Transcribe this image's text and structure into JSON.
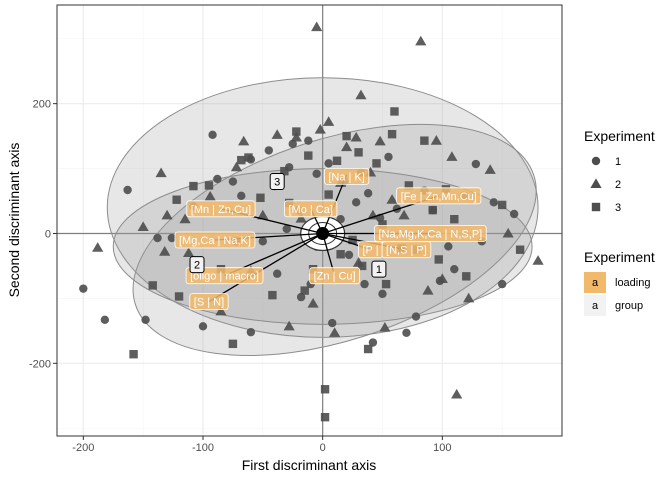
{
  "chart_data": {
    "type": "scatter",
    "title": "",
    "xlabel": "First discriminant axis",
    "ylabel": "Second discriminant axis",
    "xlim": [
      -222,
      200
    ],
    "ylim": [
      -312,
      352
    ],
    "x_ticks": [
      -200,
      -100,
      0,
      100
    ],
    "y_ticks": [
      -200,
      0,
      200
    ],
    "grid": true,
    "colors": {
      "points": "#4d4d4d",
      "ellipse_fill": "#9a9a9a",
      "ellipse_stroke": "#8c8c8c",
      "loading": "#f2b96a",
      "grid_major": "#ebebeb",
      "zero_line": "#7f7f7f"
    },
    "legend": {
      "placement": "right",
      "shape_title": "Experiment",
      "shapes": [
        {
          "label": "1",
          "shape": "circle"
        },
        {
          "label": "2",
          "shape": "triangle"
        },
        {
          "label": "3",
          "shape": "square"
        }
      ],
      "fill_title": "Experiment",
      "fills": [
        {
          "key": "a",
          "label": "loading",
          "color": "#f2b96a"
        },
        {
          "key": "a",
          "label": "group",
          "color": "#f2f2f2"
        }
      ]
    },
    "ellipses": [
      {
        "name": "1",
        "cx": 0,
        "cy": 40,
        "rx": 180,
        "ry": 200,
        "angle": 0
      },
      {
        "name": "2",
        "cx": 10,
        "cy": -10,
        "rx": 175,
        "ry": 155,
        "angle": -18
      },
      {
        "name": "3",
        "cx": 0,
        "cy": -20,
        "rx": 175,
        "ry": 120,
        "angle": 0
      }
    ],
    "loadings": [
      {
        "label": "[Fe | Zn,Mn,Cu]",
        "x": 97,
        "y": 58,
        "lx": 97,
        "ly": 58
      },
      {
        "label": "[Na | K]",
        "x": 20,
        "y": 90,
        "lx": 20,
        "ly": 88
      },
      {
        "label": "[Mn | Zn,Cu]",
        "x": -85,
        "y": 38,
        "lx": -85,
        "ly": 38
      },
      {
        "label": "[Mo | Ca]",
        "x": -10,
        "y": 38,
        "lx": -10,
        "ly": 38
      },
      {
        "label": "[Mg,Ca | Na,K]",
        "x": -90,
        "y": -10,
        "lx": -90,
        "ly": -10
      },
      {
        "label": "[Na,Mg,K,Ca | N,S,P]",
        "x": 90,
        "y": 0,
        "lx": 90,
        "ly": 0
      },
      {
        "label": "[P | ",
        "x": 40,
        "y": -25,
        "lx": 40,
        "ly": -25
      },
      {
        "label": "[N,S | P]",
        "x": 70,
        "y": -25,
        "lx": 70,
        "ly": -25
      },
      {
        "label": "[oligo | macro]",
        "x": -82,
        "y": -65,
        "lx": -82,
        "ly": -65
      },
      {
        "label": "[Zn | Cu]",
        "x": 10,
        "y": -65,
        "lx": 10,
        "ly": -65
      },
      {
        "label": "[S | N]",
        "x": -95,
        "y": -105,
        "lx": -95,
        "ly": -105
      }
    ],
    "groups": [
      {
        "label": "3",
        "x": -38,
        "y": 80
      },
      {
        "label": "2",
        "x": -105,
        "y": -48
      },
      {
        "label": "1",
        "x": 47,
        "y": -55
      }
    ],
    "series": [
      {
        "name": "1",
        "shape": "circle",
        "points": [
          [
            -200,
            -85
          ],
          [
            -182,
            -133
          ],
          [
            -163,
            67
          ],
          [
            -148,
            -133
          ],
          [
            -138,
            -7
          ],
          [
            -126,
            -7
          ],
          [
            -108,
            42
          ],
          [
            -100,
            -143
          ],
          [
            -92,
            152
          ],
          [
            -88,
            84
          ],
          [
            -75,
            80
          ],
          [
            -72,
            -12
          ],
          [
            -68,
            58
          ],
          [
            -60,
            114
          ],
          [
            -60,
            -152
          ],
          [
            -50,
            -12
          ],
          [
            -45,
            128
          ],
          [
            -40,
            73
          ],
          [
            -38,
            -62
          ],
          [
            -30,
            7
          ],
          [
            -28,
            102
          ],
          [
            -25,
            138
          ],
          [
            -20,
            36
          ],
          [
            -18,
            -98
          ],
          [
            -12,
            143
          ],
          [
            -10,
            -78
          ],
          [
            -5,
            92
          ],
          [
            5,
            108
          ],
          [
            8,
            -138
          ],
          [
            15,
            22
          ],
          [
            18,
            80
          ],
          [
            22,
            -33
          ],
          [
            28,
            48
          ],
          [
            32,
            94
          ],
          [
            35,
            -78
          ],
          [
            38,
            62
          ],
          [
            42,
            -168
          ],
          [
            48,
            24
          ],
          [
            50,
            -93
          ],
          [
            55,
            118
          ],
          [
            62,
            38
          ],
          [
            70,
            -153
          ],
          [
            78,
            -128
          ],
          [
            85,
            66
          ],
          [
            92,
            36
          ],
          [
            98,
            -73
          ],
          [
            105,
            -20
          ],
          [
            110,
            -55
          ],
          [
            118,
            58
          ],
          [
            128,
            107
          ],
          [
            133,
            -12
          ],
          [
            143,
            48
          ],
          [
            150,
            -78
          ],
          [
            160,
            30
          ]
        ]
      },
      {
        "name": "2",
        "shape": "triangle",
        "points": [
          [
            -188,
            -22
          ],
          [
            -150,
            10
          ],
          [
            -135,
            93
          ],
          [
            -132,
            -28
          ],
          [
            -130,
            28
          ],
          [
            -115,
            22
          ],
          [
            -112,
            -30
          ],
          [
            -94,
            57
          ],
          [
            -85,
            -120
          ],
          [
            -72,
            102
          ],
          [
            -66,
            142
          ],
          [
            -60,
            -58
          ],
          [
            -50,
            28
          ],
          [
            -38,
            152
          ],
          [
            -28,
            -143
          ],
          [
            -22,
            148
          ],
          [
            -18,
            23
          ],
          [
            -8,
            -108
          ],
          [
            -5,
            318
          ],
          [
            -2,
            160
          ],
          [
            5,
            172
          ],
          [
            10,
            -153
          ],
          [
            15,
            78
          ],
          [
            20,
            133
          ],
          [
            28,
            148
          ],
          [
            30,
            -45
          ],
          [
            32,
            213
          ],
          [
            40,
            94
          ],
          [
            42,
            28
          ],
          [
            48,
            142
          ],
          [
            52,
            -145
          ],
          [
            58,
            52
          ],
          [
            68,
            28
          ],
          [
            82,
            296
          ],
          [
            88,
            -88
          ],
          [
            95,
            143
          ],
          [
            100,
            -70
          ],
          [
            108,
            118
          ],
          [
            112,
            -248
          ],
          [
            122,
            -100
          ],
          [
            140,
            98
          ],
          [
            155,
            0
          ],
          [
            180,
            -42
          ]
        ]
      },
      {
        "name": "3",
        "shape": "square",
        "points": [
          [
            -158,
            -186
          ],
          [
            -142,
            -80
          ],
          [
            -122,
            52
          ],
          [
            -120,
            -97
          ],
          [
            -108,
            73
          ],
          [
            -95,
            74
          ],
          [
            -85,
            -55
          ],
          [
            -75,
            -170
          ],
          [
            -68,
            113
          ],
          [
            -62,
            117
          ],
          [
            -52,
            55
          ],
          [
            -42,
            -95
          ],
          [
            -32,
            96
          ],
          [
            -28,
            47
          ],
          [
            -22,
            157
          ],
          [
            -15,
            -88
          ],
          [
            -12,
            120
          ],
          [
            -8,
            -55
          ],
          [
            -3,
            -20
          ],
          [
            2,
            -240
          ],
          [
            2,
            -283
          ],
          [
            5,
            60
          ],
          [
            12,
            112
          ],
          [
            15,
            -32
          ],
          [
            20,
            150
          ],
          [
            25,
            -10
          ],
          [
            30,
            125
          ],
          [
            33,
            -50
          ],
          [
            38,
            -178
          ],
          [
            45,
            108
          ],
          [
            50,
            14
          ],
          [
            53,
            -78
          ],
          [
            58,
            153
          ],
          [
            60,
            188
          ],
          [
            66,
            -23
          ],
          [
            72,
            74
          ],
          [
            78,
            -25
          ],
          [
            85,
            143
          ],
          [
            92,
            36
          ],
          [
            97,
            -40
          ],
          [
            103,
            68
          ],
          [
            110,
            22
          ],
          [
            120,
            -66
          ],
          [
            150,
            44
          ],
          [
            165,
            -25
          ]
        ]
      }
    ]
  }
}
